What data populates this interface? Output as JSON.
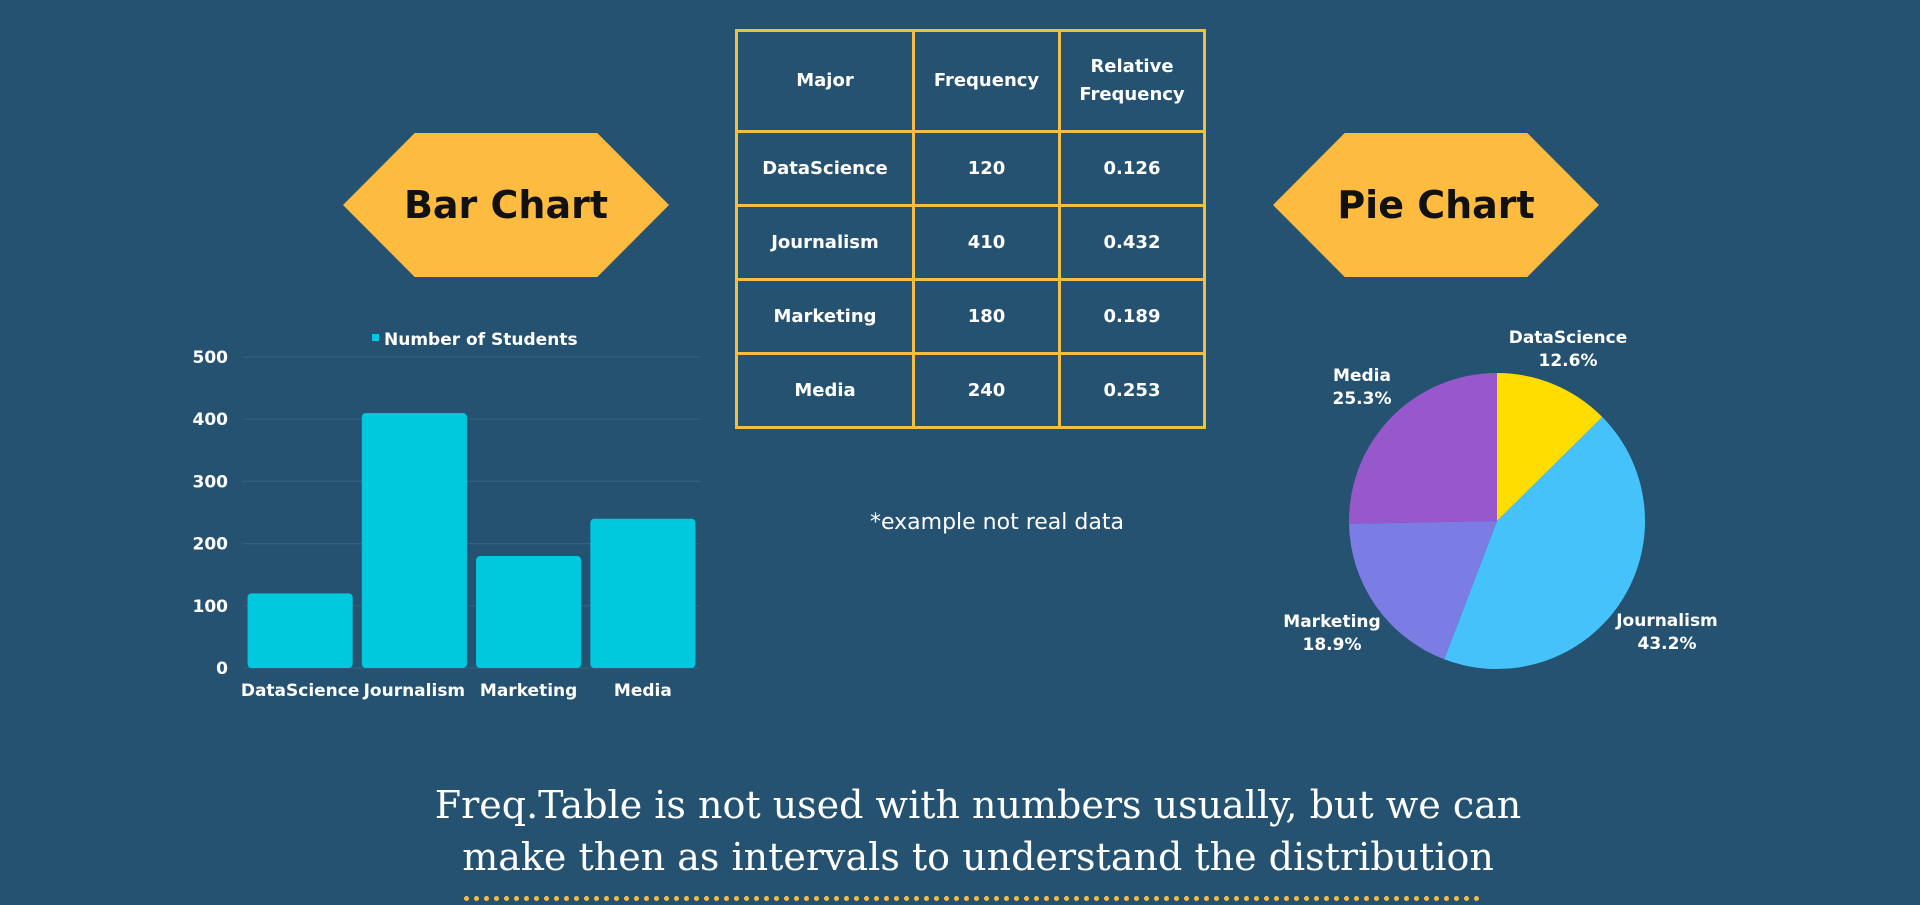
{
  "badges": {
    "bar_label": "Bar Chart",
    "pie_label": "Pie Chart",
    "color": "#FDBB40"
  },
  "table": {
    "headers": [
      "Major",
      "Frequency",
      "Relative Frequency"
    ],
    "rows": [
      [
        "DataScience",
        "120",
        "0.126"
      ],
      [
        "Journalism",
        "410",
        "0.432"
      ],
      [
        "Marketing",
        "180",
        "0.189"
      ],
      [
        "Media",
        "240",
        "0.253"
      ]
    ],
    "border_color": "#F3BE44"
  },
  "note": "*example not real data",
  "caption": {
    "line1": "Freq.Table is not used with numbers usually, but we can",
    "line2": "make then as intervals to understand the distribution"
  },
  "chart_data": [
    {
      "type": "bar",
      "title": "",
      "legend": "Number of Students",
      "legend_position": "top",
      "categories": [
        "DataScience",
        "Journalism",
        "Marketing",
        "Media"
      ],
      "values": [
        120,
        410,
        180,
        240
      ],
      "ylim": [
        0,
        500
      ],
      "yticks": [
        0,
        100,
        200,
        300,
        400,
        500
      ],
      "xlabel": "",
      "ylabel": "",
      "grid": true,
      "color": "#00C8DD"
    },
    {
      "type": "pie",
      "title": "",
      "slices": [
        {
          "label": "DataScience",
          "value": 12.6,
          "display": "12.6%",
          "color": "#FFDD00"
        },
        {
          "label": "Journalism",
          "value": 43.2,
          "display": "43.2%",
          "color": "#46C2FA"
        },
        {
          "label": "Marketing",
          "value": 18.9,
          "display": "18.9%",
          "color": "#7B7DE4"
        },
        {
          "label": "Media",
          "value": 25.3,
          "display": "25.3%",
          "color": "#9758CC"
        }
      ]
    }
  ]
}
